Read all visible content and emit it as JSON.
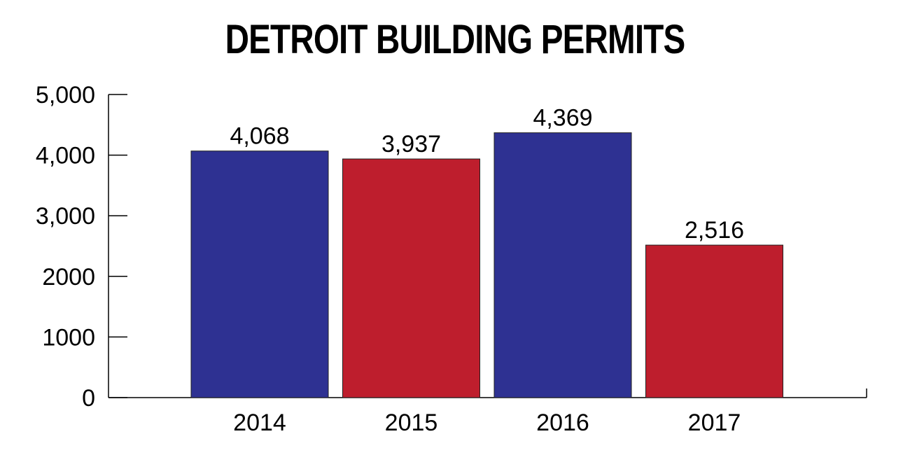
{
  "chart_data": {
    "type": "bar",
    "title": "DETROIT BUILDING PERMITS",
    "xlabel": "",
    "ylabel": "",
    "categories": [
      "2014",
      "2015",
      "2016",
      "2017"
    ],
    "values": [
      4068,
      3937,
      4369,
      2516
    ],
    "value_labels": [
      "4,068",
      "3,937",
      "4,369",
      "2,516"
    ],
    "bar_colors": [
      "#2e3192",
      "#be1e2d",
      "#2e3192",
      "#be1e2d"
    ],
    "ylim": [
      0,
      5000
    ],
    "yticks": [
      0,
      1000,
      2000,
      3000,
      4000,
      5000
    ],
    "ytick_labels": [
      "0",
      "1000",
      "2000",
      "3,000",
      "4,000",
      "5,000"
    ],
    "grid": false,
    "legend": "none"
  }
}
